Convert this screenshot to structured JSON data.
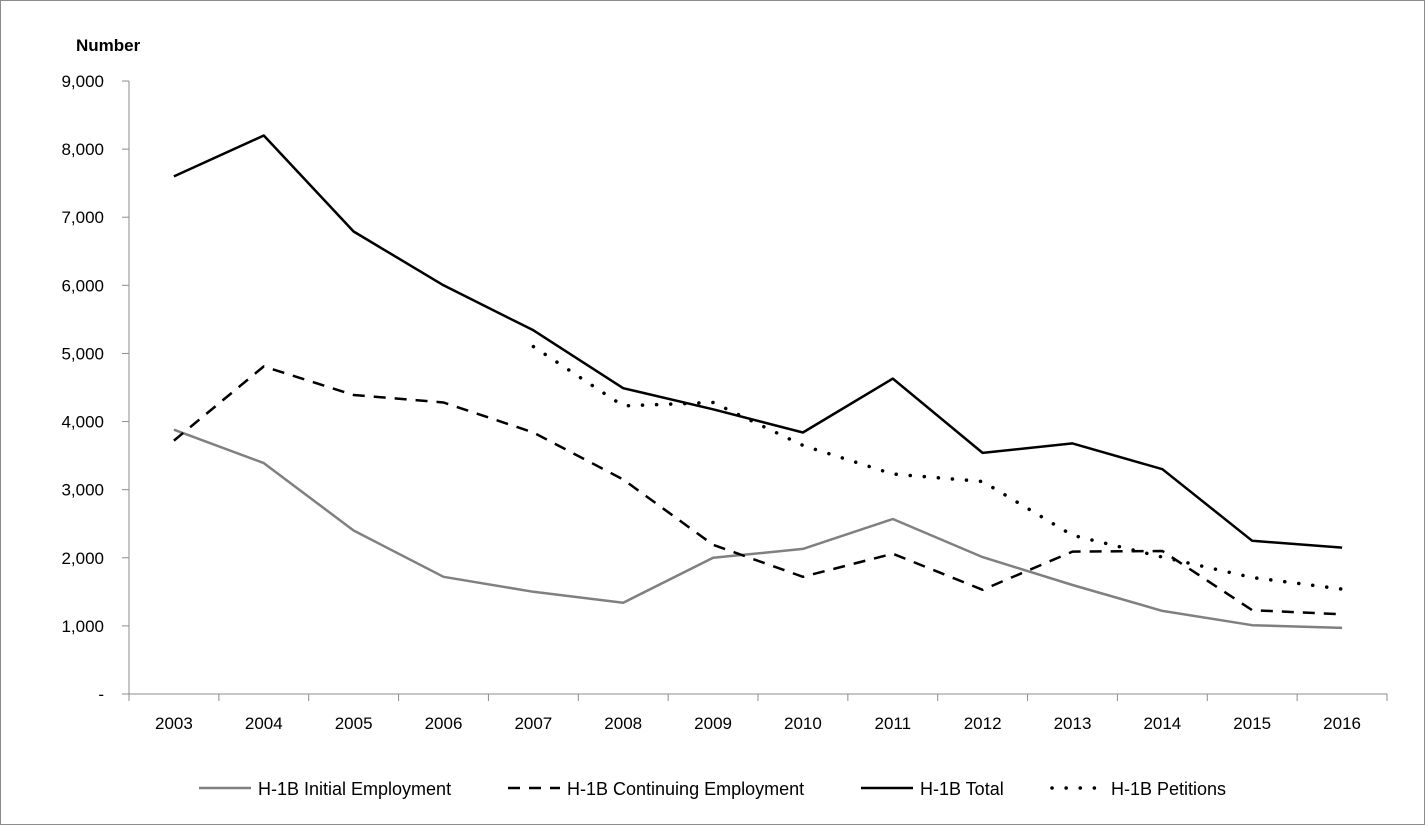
{
  "chart_data": {
    "type": "line",
    "title": "",
    "xlabel": "",
    "ylabel": "Number",
    "ylim": [
      0,
      9000
    ],
    "y_ticks": [
      0,
      1000,
      2000,
      3000,
      4000,
      5000,
      6000,
      7000,
      8000,
      9000
    ],
    "y_tick_labels": [
      "-",
      "1,000",
      "2,000",
      "3,000",
      "4,000",
      "5,000",
      "6,000",
      "7,000",
      "8,000",
      "9,000"
    ],
    "categories": [
      "2003",
      "2004",
      "2005",
      "2006",
      "2007",
      "2008",
      "2009",
      "2010",
      "2011",
      "2012",
      "2013",
      "2014",
      "2015",
      "2016"
    ],
    "grid": false,
    "legend_position": "bottom",
    "series": [
      {
        "name": "H-1B Initial Employment",
        "color": "#808080",
        "style": "solid",
        "values": [
          3880,
          3390,
          2400,
          1720,
          1500,
          1340,
          2000,
          2130,
          2570,
          2010,
          1600,
          1220,
          1010,
          970
        ]
      },
      {
        "name": "H-1B Continuing Employment",
        "color": "#000000",
        "style": "dashed",
        "values": [
          3720,
          4810,
          4390,
          4280,
          3840,
          3150,
          2190,
          1720,
          2060,
          1530,
          2090,
          2100,
          1230,
          1170
        ]
      },
      {
        "name": "H-1B Total",
        "color": "#000000",
        "style": "solid",
        "values": [
          7600,
          8200,
          6790,
          6000,
          5340,
          4490,
          4180,
          3840,
          4630,
          3540,
          3680,
          3300,
          2250,
          2150
        ]
      },
      {
        "name": "H-1B Petitions",
        "color": "#000000",
        "style": "dotted",
        "values": [
          null,
          null,
          null,
          null,
          5100,
          4230,
          4280,
          3650,
          3230,
          3120,
          2330,
          2010,
          1710,
          1540
        ]
      }
    ]
  }
}
